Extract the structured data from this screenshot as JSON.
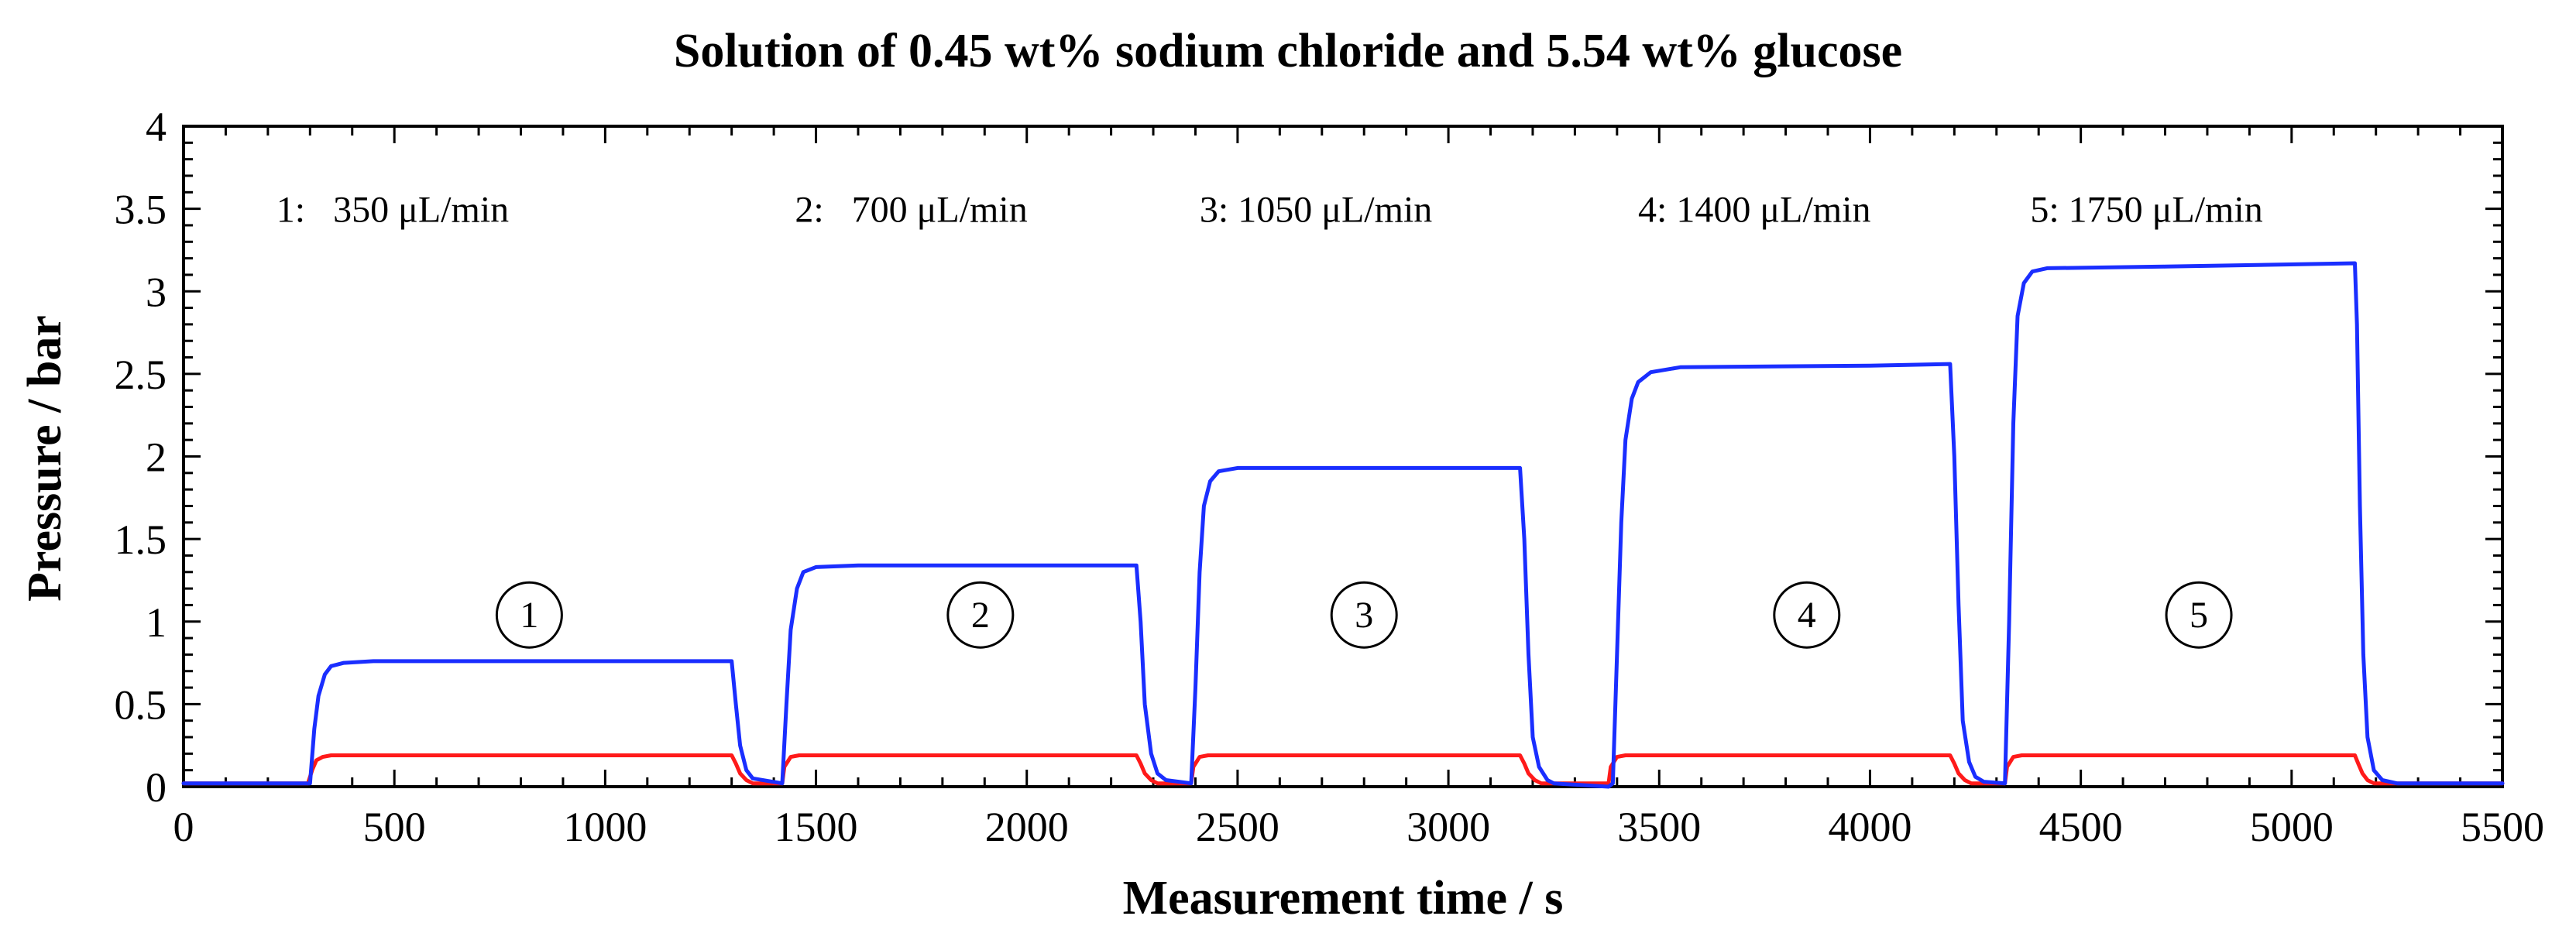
{
  "chart_data": {
    "type": "line",
    "title": "Solution of 0.45 wt% sodium chloride and 5.54 wt% glucose",
    "xlabel": "Measurement time / s",
    "ylabel": "Pressure / bar",
    "xlim": [
      0,
      5500
    ],
    "ylim": [
      0,
      4
    ],
    "xticks": [
      0,
      500,
      1000,
      1500,
      2000,
      2500,
      3000,
      3500,
      4000,
      4500,
      5000,
      5500
    ],
    "xtick_labels": [
      "0",
      "500",
      "1000",
      "1500",
      "2000",
      "2500",
      "3000",
      "3500",
      "4000",
      "4500",
      "5000",
      "5500"
    ],
    "yticks": [
      0,
      0.5,
      1,
      1.5,
      2,
      2.5,
      3,
      3.5,
      4
    ],
    "ytick_labels": [
      "0",
      "0.5",
      "1",
      "1.5",
      "2",
      "2.5",
      "3",
      "3.5",
      "4"
    ],
    "grid": false,
    "series": [
      {
        "name": "blue",
        "color": "#1a2eff",
        "points": [
          [
            0,
            0.02
          ],
          [
            300,
            0.02
          ],
          [
            310,
            0.35
          ],
          [
            320,
            0.55
          ],
          [
            335,
            0.68
          ],
          [
            350,
            0.73
          ],
          [
            380,
            0.75
          ],
          [
            450,
            0.76
          ],
          [
            1000,
            0.76
          ],
          [
            1300,
            0.76
          ],
          [
            1310,
            0.5
          ],
          [
            1320,
            0.25
          ],
          [
            1335,
            0.1
          ],
          [
            1350,
            0.05
          ],
          [
            1420,
            0.02
          ],
          [
            1430,
            0.5
          ],
          [
            1440,
            0.95
          ],
          [
            1455,
            1.2
          ],
          [
            1470,
            1.3
          ],
          [
            1500,
            1.33
          ],
          [
            1600,
            1.34
          ],
          [
            2000,
            1.34
          ],
          [
            2260,
            1.34
          ],
          [
            2270,
            1.0
          ],
          [
            2280,
            0.5
          ],
          [
            2295,
            0.2
          ],
          [
            2310,
            0.08
          ],
          [
            2330,
            0.04
          ],
          [
            2390,
            0.02
          ],
          [
            2400,
            0.6
          ],
          [
            2410,
            1.3
          ],
          [
            2420,
            1.7
          ],
          [
            2435,
            1.85
          ],
          [
            2455,
            1.91
          ],
          [
            2500,
            1.93
          ],
          [
            3000,
            1.93
          ],
          [
            3170,
            1.93
          ],
          [
            3180,
            1.5
          ],
          [
            3190,
            0.8
          ],
          [
            3200,
            0.3
          ],
          [
            3215,
            0.12
          ],
          [
            3235,
            0.04
          ],
          [
            3250,
            0.02
          ],
          [
            3380,
            0.0
          ],
          [
            3390,
            0.02
          ],
          [
            3400,
            0.8
          ],
          [
            3410,
            1.6
          ],
          [
            3420,
            2.1
          ],
          [
            3435,
            2.35
          ],
          [
            3450,
            2.45
          ],
          [
            3480,
            2.51
          ],
          [
            3550,
            2.54
          ],
          [
            4000,
            2.55
          ],
          [
            4190,
            2.56
          ],
          [
            4200,
            2.0
          ],
          [
            4210,
            1.1
          ],
          [
            4220,
            0.4
          ],
          [
            4235,
            0.15
          ],
          [
            4250,
            0.06
          ],
          [
            4270,
            0.03
          ],
          [
            4320,
            0.02
          ],
          [
            4330,
            1.0
          ],
          [
            4340,
            2.2
          ],
          [
            4350,
            2.85
          ],
          [
            4365,
            3.05
          ],
          [
            4385,
            3.12
          ],
          [
            4420,
            3.14
          ],
          [
            4700,
            3.15
          ],
          [
            5150,
            3.17
          ],
          [
            5155,
            2.8
          ],
          [
            5162,
            1.7
          ],
          [
            5170,
            0.8
          ],
          [
            5180,
            0.3
          ],
          [
            5195,
            0.1
          ],
          [
            5215,
            0.04
          ],
          [
            5250,
            0.02
          ],
          [
            5500,
            0.02
          ]
        ]
      },
      {
        "name": "red",
        "color": "#ff1a1a",
        "points": [
          [
            0,
            0.02
          ],
          [
            295,
            0.02
          ],
          [
            305,
            0.1
          ],
          [
            315,
            0.16
          ],
          [
            330,
            0.18
          ],
          [
            350,
            0.19
          ],
          [
            1000,
            0.19
          ],
          [
            1300,
            0.19
          ],
          [
            1310,
            0.14
          ],
          [
            1320,
            0.08
          ],
          [
            1335,
            0.04
          ],
          [
            1350,
            0.02
          ],
          [
            1420,
            0.02
          ],
          [
            1425,
            0.12
          ],
          [
            1440,
            0.18
          ],
          [
            1460,
            0.19
          ],
          [
            2260,
            0.19
          ],
          [
            2270,
            0.14
          ],
          [
            2280,
            0.08
          ],
          [
            2295,
            0.04
          ],
          [
            2310,
            0.02
          ],
          [
            2390,
            0.02
          ],
          [
            2395,
            0.12
          ],
          [
            2410,
            0.18
          ],
          [
            2430,
            0.19
          ],
          [
            3170,
            0.19
          ],
          [
            3180,
            0.14
          ],
          [
            3190,
            0.08
          ],
          [
            3205,
            0.04
          ],
          [
            3220,
            0.02
          ],
          [
            3380,
            0.02
          ],
          [
            3385,
            0.12
          ],
          [
            3400,
            0.18
          ],
          [
            3420,
            0.19
          ],
          [
            4190,
            0.19
          ],
          [
            4200,
            0.14
          ],
          [
            4210,
            0.08
          ],
          [
            4225,
            0.04
          ],
          [
            4240,
            0.02
          ],
          [
            4320,
            0.02
          ],
          [
            4325,
            0.12
          ],
          [
            4340,
            0.18
          ],
          [
            4360,
            0.19
          ],
          [
            5150,
            0.19
          ],
          [
            5158,
            0.14
          ],
          [
            5168,
            0.08
          ],
          [
            5180,
            0.04
          ],
          [
            5195,
            0.02
          ],
          [
            5500,
            0.02
          ]
        ]
      }
    ],
    "annotations": [
      {
        "text": "1:   350 μL/min",
        "x": 220,
        "y": 3.42
      },
      {
        "text": "2:   700 μL/min",
        "x": 1450,
        "y": 3.42
      },
      {
        "text": "3: 1050 μL/min",
        "x": 2410,
        "y": 3.42
      },
      {
        "text": "4: 1400 μL/min",
        "x": 3450,
        "y": 3.42
      },
      {
        "text": "5: 1750 μL/min",
        "x": 4380,
        "y": 3.42
      }
    ],
    "circle_labels": [
      {
        "text": "1",
        "x": 820,
        "y": 1.04
      },
      {
        "text": "2",
        "x": 1890,
        "y": 1.04
      },
      {
        "text": "3",
        "x": 2800,
        "y": 1.04
      },
      {
        "text": "4",
        "x": 3850,
        "y": 1.04
      },
      {
        "text": "5",
        "x": 4780,
        "y": 1.04
      }
    ]
  }
}
